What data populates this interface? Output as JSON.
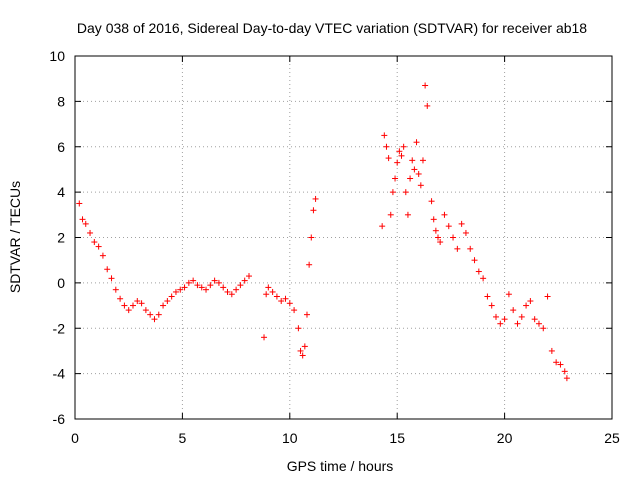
{
  "chart_data": {
    "type": "scatter",
    "title": "Day 038 of 2016, Sidereal Day-to-day VTEC variation (SDTVAR) for receiver ab18",
    "xlabel": "GPS time / hours",
    "ylabel": "SDTVAR / TECUs",
    "xlim": [
      0,
      25
    ],
    "ylim": [
      -6,
      10
    ],
    "xticks": [
      "0",
      "5",
      "10",
      "15",
      "20",
      "25"
    ],
    "yticks": [
      "-6",
      "-4",
      "-2",
      "0",
      "2",
      "4",
      "6",
      "8",
      "10"
    ],
    "grid": true,
    "marker": "+",
    "marker_color": "#ff0000",
    "series": [
      {
        "name": "SDTVAR",
        "x": [
          0.2,
          0.35,
          0.5,
          0.7,
          0.9,
          1.1,
          1.3,
          1.5,
          1.7,
          1.9,
          2.1,
          2.3,
          2.5,
          2.7,
          2.9,
          3.1,
          3.3,
          3.5,
          3.7,
          3.9,
          4.1,
          4.3,
          4.5,
          4.7,
          4.9,
          5.1,
          5.3,
          5.5,
          5.7,
          5.9,
          6.1,
          6.3,
          6.5,
          6.7,
          6.9,
          7.1,
          7.3,
          7.5,
          7.7,
          7.9,
          8.1,
          8.8,
          8.9,
          9.0,
          9.2,
          9.4,
          9.6,
          9.8,
          10.0,
          10.2,
          10.4,
          10.5,
          10.6,
          10.7,
          10.8,
          10.9,
          11.0,
          11.1,
          11.2,
          14.3,
          14.4,
          14.5,
          14.6,
          14.7,
          14.8,
          14.9,
          15.0,
          15.1,
          15.2,
          15.3,
          15.4,
          15.5,
          15.6,
          15.7,
          15.8,
          15.9,
          16.0,
          16.1,
          16.2,
          16.3,
          16.4,
          16.6,
          16.7,
          16.8,
          16.9,
          17.0,
          17.2,
          17.4,
          17.6,
          17.8,
          18.0,
          18.2,
          18.4,
          18.6,
          18.8,
          19.0,
          19.2,
          19.4,
          19.6,
          19.8,
          20.0,
          20.2,
          20.4,
          20.6,
          20.8,
          21.0,
          21.2,
          21.4,
          21.6,
          21.8,
          22.0,
          22.2,
          22.4,
          22.6,
          22.8,
          22.9
        ],
        "y": [
          3.5,
          2.8,
          2.6,
          2.2,
          1.8,
          1.6,
          1.2,
          0.6,
          0.2,
          -0.3,
          -0.7,
          -1.0,
          -1.2,
          -1.0,
          -0.8,
          -0.9,
          -1.2,
          -1.4,
          -1.6,
          -1.4,
          -1.0,
          -0.8,
          -0.6,
          -0.4,
          -0.3,
          -0.2,
          0.0,
          0.1,
          -0.1,
          -0.2,
          -0.3,
          -0.1,
          0.1,
          0.0,
          -0.2,
          -0.4,
          -0.5,
          -0.3,
          -0.1,
          0.1,
          0.3,
          -2.4,
          -0.5,
          -0.2,
          -0.4,
          -0.6,
          -0.8,
          -0.7,
          -0.9,
          -1.2,
          -2.0,
          -3.0,
          -3.2,
          -2.8,
          -1.4,
          0.8,
          2.0,
          3.2,
          3.7,
          2.5,
          6.5,
          6.0,
          5.5,
          3.0,
          4.0,
          4.6,
          5.3,
          5.8,
          5.6,
          6.0,
          4.0,
          3.0,
          4.6,
          5.4,
          5.0,
          6.2,
          4.8,
          4.3,
          5.4,
          8.7,
          7.8,
          3.6,
          2.8,
          2.3,
          2.0,
          1.8,
          3.0,
          2.5,
          2.0,
          1.5,
          2.6,
          2.2,
          1.5,
          1.0,
          0.5,
          0.2,
          -0.6,
          -1.0,
          -1.5,
          -1.8,
          -1.6,
          -0.5,
          -1.2,
          -1.8,
          -1.5,
          -1.0,
          -0.8,
          -1.6,
          -1.8,
          -2.0,
          -0.6,
          -3.0,
          -3.5,
          -3.6,
          -3.9,
          -4.2
        ]
      }
    ]
  }
}
